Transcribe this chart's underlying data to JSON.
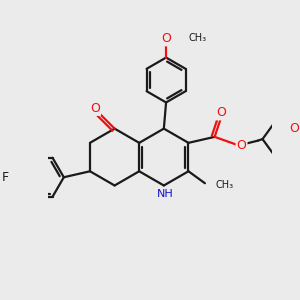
{
  "background_color": "#ebebeb",
  "bond_color": "#1a1a1a",
  "oxygen_color": "#ee1111",
  "nitrogen_color": "#1111cc",
  "line_width": 1.6,
  "figsize": [
    3.0,
    3.0
  ],
  "dpi": 100,
  "xlim": [
    0,
    300
  ],
  "ylim": [
    0,
    300
  ]
}
